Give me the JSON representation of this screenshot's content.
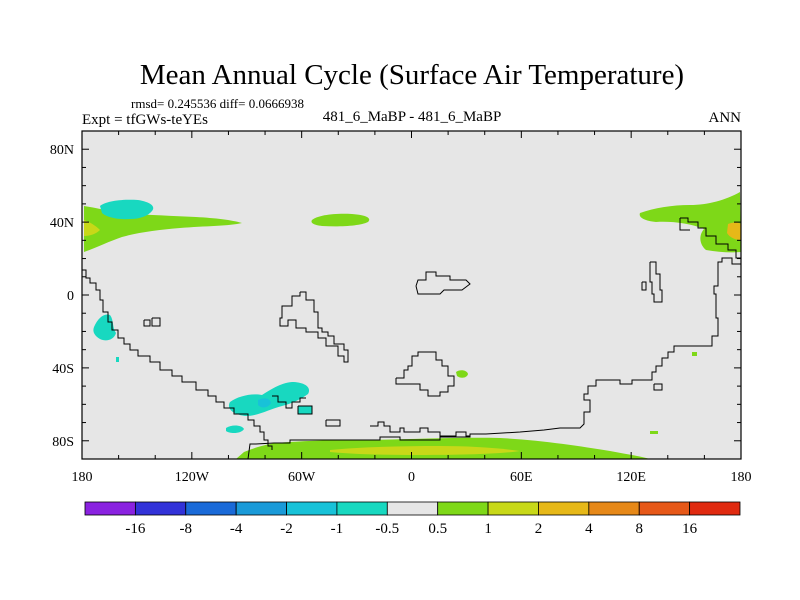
{
  "chart_data": {
    "type": "heatmap",
    "title": "Mean Annual Cycle (Surface Air Temperature)",
    "stats_line": "rmsd= 0.245536  diff= 0.0666938",
    "left_label": "Expt = tfGWs-teYEs",
    "center_label": "481_6_MaBP - 481_6_MaBP",
    "right_label": "ANN",
    "x_axis": {
      "range": [
        -180,
        180
      ],
      "ticks": [
        -180,
        -120,
        -60,
        0,
        60,
        120,
        180
      ],
      "tick_labels": [
        "180",
        "120W",
        "60W",
        "0",
        "60E",
        "120E",
        "180"
      ]
    },
    "y_axis": {
      "range": [
        -90,
        90
      ],
      "ticks": [
        80,
        40,
        0,
        -40,
        -80
      ],
      "tick_labels": [
        "80N",
        "40N",
        "0",
        "40S",
        "80S"
      ]
    },
    "colorbar": {
      "labels": [
        "-16",
        "-8",
        "-4",
        "-2",
        "-1",
        "-0.5",
        "0.5",
        "1",
        "2",
        "4",
        "8",
        "16"
      ],
      "colors": [
        "#8a22e0",
        "#3232d8",
        "#1a6ad8",
        "#1a9ad8",
        "#18c2d8",
        "#18d8c0",
        "#e6e6e6",
        "#7ed818",
        "#c8d818",
        "#e6b818",
        "#e68818",
        "#e65818",
        "#e02a10"
      ]
    },
    "background_color": "#e6e6e6",
    "anomaly_regions": [
      {
        "name": "north-pacific-warm-band",
        "level": "0.5 to 1",
        "color": "#7ed818"
      },
      {
        "name": "north-pacific-cold-patch",
        "level": "-1 to -0.5",
        "color": "#18d8c0"
      },
      {
        "name": "north-pacific-warm-core",
        "level": "1 to 2",
        "color": "#c8d818"
      },
      {
        "name": "north-atlantic-warm-patch",
        "level": "0.5 to 1",
        "color": "#7ed818"
      },
      {
        "name": "east-asia-warm-band",
        "level": "0.5 to 1",
        "color": "#7ed818"
      },
      {
        "name": "east-asia-warm-core",
        "level": "2 to 4",
        "color": "#e6b818"
      },
      {
        "name": "south-atlantic-cold-patch",
        "level": "-1 to -0.5",
        "color": "#18d8c0"
      },
      {
        "name": "south-atlantic-colder-core",
        "level": "-2 to -1",
        "color": "#18c2d8"
      },
      {
        "name": "tropical-pacific-cold-patch",
        "level": "-1 to -0.5",
        "color": "#18d8c0"
      },
      {
        "name": "southern-ocean-warm-band",
        "level": "0.5 to 1",
        "color": "#7ed818"
      },
      {
        "name": "southern-ocean-warm-core",
        "level": "1 to 2",
        "color": "#c8d818"
      }
    ]
  }
}
